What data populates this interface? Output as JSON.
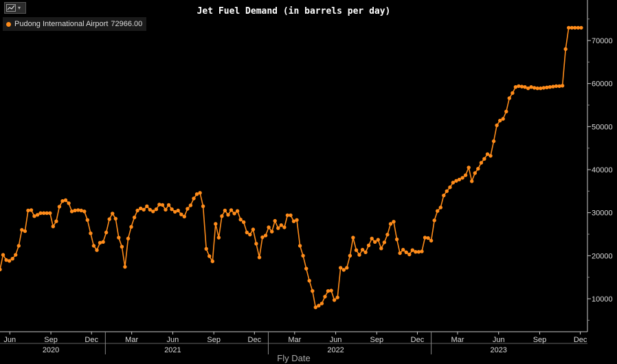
{
  "toolbar": {
    "icon": "line-chart-icon"
  },
  "legend": {
    "series_name": "Pudong International Airport",
    "last_value": "72966.00",
    "color": "#ff8c1a"
  },
  "chart_data": {
    "type": "line",
    "title": "Jet Fuel Demand (in barrels per day)",
    "xlabel": "Fly Date",
    "ylabel": "",
    "ylim": [
      0,
      80000
    ],
    "y_ticks": [
      10000,
      20000,
      30000,
      40000,
      50000,
      60000,
      70000
    ],
    "y_tick_labels": [
      "10000",
      "20000",
      "30000",
      "40000",
      "50000",
      "60000",
      "70000"
    ],
    "month_ticks": [
      {
        "label": "Jun",
        "date": "2020-06-01"
      },
      {
        "label": "Sep",
        "date": "2020-09-01"
      },
      {
        "label": "Dec",
        "date": "2020-12-01"
      },
      {
        "label": "Mar",
        "date": "2021-03-01"
      },
      {
        "label": "Jun",
        "date": "2021-06-01"
      },
      {
        "label": "Sep",
        "date": "2021-09-01"
      },
      {
        "label": "Dec",
        "date": "2021-12-01"
      },
      {
        "label": "Mar",
        "date": "2022-03-01"
      },
      {
        "label": "Jun",
        "date": "2022-06-01"
      },
      {
        "label": "Sep",
        "date": "2022-09-01"
      },
      {
        "label": "Dec",
        "date": "2022-12-01"
      },
      {
        "label": "Mar",
        "date": "2023-03-01"
      },
      {
        "label": "Jun",
        "date": "2023-06-01"
      },
      {
        "label": "Sep",
        "date": "2023-09-01"
      },
      {
        "label": "Dec",
        "date": "2023-12-01"
      }
    ],
    "year_labels": [
      {
        "label": "2020",
        "date": "2020-09-01"
      },
      {
        "label": "2021",
        "date": "2021-06-01"
      },
      {
        "label": "2022",
        "date": "2022-06-01"
      },
      {
        "label": "2023",
        "date": "2023-06-01"
      }
    ],
    "year_boundaries": [
      "2021-01-01",
      "2022-01-01",
      "2023-01-01"
    ],
    "grid": false,
    "legend_position": "top-left",
    "series": [
      {
        "name": "Pudong International Airport",
        "color": "#ff8c1a",
        "points": [
          [
            "2020-05-10",
            16800
          ],
          [
            "2020-05-17",
            20200
          ],
          [
            "2020-05-24",
            19000
          ],
          [
            "2020-05-31",
            18800
          ],
          [
            "2020-06-07",
            19300
          ],
          [
            "2020-06-14",
            20200
          ],
          [
            "2020-06-21",
            22300
          ],
          [
            "2020-06-28",
            26000
          ],
          [
            "2020-07-05",
            25700
          ],
          [
            "2020-07-12",
            30500
          ],
          [
            "2020-07-19",
            30600
          ],
          [
            "2020-07-26",
            29200
          ],
          [
            "2020-08-02",
            29500
          ],
          [
            "2020-08-09",
            29900
          ],
          [
            "2020-08-16",
            29900
          ],
          [
            "2020-08-23",
            29900
          ],
          [
            "2020-08-30",
            29900
          ],
          [
            "2020-09-06",
            26800
          ],
          [
            "2020-09-13",
            28000
          ],
          [
            "2020-09-20",
            31400
          ],
          [
            "2020-09-27",
            32700
          ],
          [
            "2020-10-04",
            32900
          ],
          [
            "2020-10-11",
            32200
          ],
          [
            "2020-10-18",
            30300
          ],
          [
            "2020-10-25",
            30500
          ],
          [
            "2020-11-01",
            30600
          ],
          [
            "2020-11-08",
            30500
          ],
          [
            "2020-11-15",
            30300
          ],
          [
            "2020-11-22",
            28300
          ],
          [
            "2020-11-29",
            25200
          ],
          [
            "2020-12-06",
            22300
          ],
          [
            "2020-12-13",
            21300
          ],
          [
            "2020-12-20",
            23000
          ],
          [
            "2020-12-27",
            23200
          ],
          [
            "2021-01-03",
            25400
          ],
          [
            "2021-01-10",
            28500
          ],
          [
            "2021-01-17",
            29800
          ],
          [
            "2021-01-24",
            28600
          ],
          [
            "2021-01-31",
            24200
          ],
          [
            "2021-02-07",
            22100
          ],
          [
            "2021-02-14",
            17400
          ],
          [
            "2021-02-21",
            24000
          ],
          [
            "2021-02-28",
            26700
          ],
          [
            "2021-03-07",
            28900
          ],
          [
            "2021-03-14",
            30500
          ],
          [
            "2021-03-21",
            31000
          ],
          [
            "2021-03-28",
            30700
          ],
          [
            "2021-04-04",
            31500
          ],
          [
            "2021-04-11",
            30700
          ],
          [
            "2021-04-18",
            30300
          ],
          [
            "2021-04-25",
            30800
          ],
          [
            "2021-05-02",
            31900
          ],
          [
            "2021-05-09",
            31800
          ],
          [
            "2021-05-16",
            30700
          ],
          [
            "2021-05-23",
            31800
          ],
          [
            "2021-05-30",
            30800
          ],
          [
            "2021-06-06",
            30200
          ],
          [
            "2021-06-13",
            30500
          ],
          [
            "2021-06-20",
            29600
          ],
          [
            "2021-06-27",
            29100
          ],
          [
            "2021-07-04",
            30900
          ],
          [
            "2021-07-11",
            31700
          ],
          [
            "2021-07-18",
            33300
          ],
          [
            "2021-07-25",
            34300
          ],
          [
            "2021-08-01",
            34600
          ],
          [
            "2021-08-08",
            31500
          ],
          [
            "2021-08-15",
            21600
          ],
          [
            "2021-08-22",
            19900
          ],
          [
            "2021-08-29",
            18700
          ],
          [
            "2021-09-05",
            27400
          ],
          [
            "2021-09-12",
            24200
          ],
          [
            "2021-09-19",
            29200
          ],
          [
            "2021-09-26",
            30500
          ],
          [
            "2021-10-03",
            29500
          ],
          [
            "2021-10-10",
            30600
          ],
          [
            "2021-10-17",
            29800
          ],
          [
            "2021-10-24",
            30400
          ],
          [
            "2021-10-31",
            28400
          ],
          [
            "2021-11-07",
            27800
          ],
          [
            "2021-11-14",
            25400
          ],
          [
            "2021-11-21",
            24900
          ],
          [
            "2021-11-28",
            26100
          ],
          [
            "2021-12-05",
            22800
          ],
          [
            "2021-12-12",
            19600
          ],
          [
            "2021-12-19",
            24300
          ],
          [
            "2021-12-26",
            24700
          ],
          [
            "2022-01-02",
            26600
          ],
          [
            "2022-01-09",
            25600
          ],
          [
            "2022-01-16",
            28100
          ],
          [
            "2022-01-23",
            26400
          ],
          [
            "2022-01-30",
            27100
          ],
          [
            "2022-02-06",
            26600
          ],
          [
            "2022-02-13",
            29400
          ],
          [
            "2022-02-20",
            29400
          ],
          [
            "2022-02-27",
            28000
          ],
          [
            "2022-03-06",
            28300
          ],
          [
            "2022-03-13",
            22300
          ],
          [
            "2022-03-20",
            20000
          ],
          [
            "2022-03-27",
            17000
          ],
          [
            "2022-04-03",
            14200
          ],
          [
            "2022-04-10",
            11800
          ],
          [
            "2022-04-17",
            8000
          ],
          [
            "2022-04-24",
            8400
          ],
          [
            "2022-05-01",
            8900
          ],
          [
            "2022-05-08",
            10500
          ],
          [
            "2022-05-15",
            11800
          ],
          [
            "2022-05-22",
            11900
          ],
          [
            "2022-05-29",
            9700
          ],
          [
            "2022-06-05",
            10300
          ],
          [
            "2022-06-12",
            17200
          ],
          [
            "2022-06-19",
            16700
          ],
          [
            "2022-06-26",
            17200
          ],
          [
            "2022-07-03",
            20000
          ],
          [
            "2022-07-10",
            24200
          ],
          [
            "2022-07-17",
            21300
          ],
          [
            "2022-07-24",
            20200
          ],
          [
            "2022-07-31",
            21400
          ],
          [
            "2022-08-07",
            20800
          ],
          [
            "2022-08-14",
            22400
          ],
          [
            "2022-08-21",
            24000
          ],
          [
            "2022-08-28",
            23200
          ],
          [
            "2022-09-04",
            23700
          ],
          [
            "2022-09-11",
            21700
          ],
          [
            "2022-09-18",
            23100
          ],
          [
            "2022-09-25",
            24900
          ],
          [
            "2022-10-02",
            27400
          ],
          [
            "2022-10-09",
            27900
          ],
          [
            "2022-10-16",
            23800
          ],
          [
            "2022-10-23",
            20600
          ],
          [
            "2022-10-30",
            21400
          ],
          [
            "2022-11-06",
            20800
          ],
          [
            "2022-11-13",
            20300
          ],
          [
            "2022-11-20",
            21300
          ],
          [
            "2022-11-27",
            20900
          ],
          [
            "2022-12-04",
            20900
          ],
          [
            "2022-12-11",
            21000
          ],
          [
            "2022-12-18",
            24200
          ],
          [
            "2022-12-25",
            24100
          ],
          [
            "2023-01-01",
            23500
          ],
          [
            "2023-01-08",
            28200
          ],
          [
            "2023-01-15",
            30400
          ],
          [
            "2023-01-22",
            31200
          ],
          [
            "2023-01-29",
            34000
          ],
          [
            "2023-02-05",
            35000
          ],
          [
            "2023-02-12",
            35900
          ],
          [
            "2023-02-19",
            37000
          ],
          [
            "2023-02-26",
            37400
          ],
          [
            "2023-03-05",
            37700
          ],
          [
            "2023-03-12",
            38100
          ],
          [
            "2023-03-19",
            38700
          ],
          [
            "2023-03-26",
            40500
          ],
          [
            "2023-04-02",
            37300
          ],
          [
            "2023-04-09",
            39200
          ],
          [
            "2023-04-16",
            40200
          ],
          [
            "2023-04-23",
            41600
          ],
          [
            "2023-04-30",
            42500
          ],
          [
            "2023-05-07",
            43600
          ],
          [
            "2023-05-14",
            43200
          ],
          [
            "2023-05-21",
            46600
          ],
          [
            "2023-05-28",
            50300
          ],
          [
            "2023-06-04",
            51400
          ],
          [
            "2023-06-11",
            51800
          ],
          [
            "2023-06-18",
            53500
          ],
          [
            "2023-06-25",
            56600
          ],
          [
            "2023-07-02",
            57800
          ],
          [
            "2023-07-09",
            59200
          ],
          [
            "2023-07-16",
            59400
          ],
          [
            "2023-07-23",
            59300
          ],
          [
            "2023-07-30",
            59200
          ],
          [
            "2023-08-06",
            58900
          ],
          [
            "2023-08-13",
            59200
          ],
          [
            "2023-08-20",
            59000
          ],
          [
            "2023-08-27",
            58900
          ],
          [
            "2023-09-03",
            58900
          ],
          [
            "2023-09-10",
            59000
          ],
          [
            "2023-09-17",
            59100
          ],
          [
            "2023-09-24",
            59200
          ],
          [
            "2023-10-01",
            59300
          ],
          [
            "2023-10-08",
            59400
          ],
          [
            "2023-10-15",
            59400
          ],
          [
            "2023-10-22",
            59500
          ],
          [
            "2023-10-29",
            68000
          ],
          [
            "2023-11-05",
            72966
          ],
          [
            "2023-11-12",
            72966
          ],
          [
            "2023-11-19",
            72966
          ],
          [
            "2023-11-26",
            72966
          ],
          [
            "2023-12-03",
            72966
          ]
        ]
      }
    ]
  }
}
